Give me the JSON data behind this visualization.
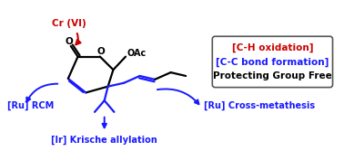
{
  "cr_vi_label": "Cr (VI)",
  "cr_vi_color": "#cc0000",
  "ru_rcm_label": "[Ru] RCM",
  "ru_cross_label": "[Ru] Cross-metathesis",
  "ir_label": "[Ir] Krische allylation",
  "blue_color": "#1a1aff",
  "red_color": "#cc0000",
  "black_color": "#000000",
  "box_line1": "[C-H oxidation]",
  "box_line1_color": "#cc0000",
  "box_line2": "[C-C bond formation]",
  "box_line2_color": "#1a1aff",
  "box_line3": "Protecting Group Free",
  "box_line3_color": "#000000",
  "bg_color": "#ffffff"
}
